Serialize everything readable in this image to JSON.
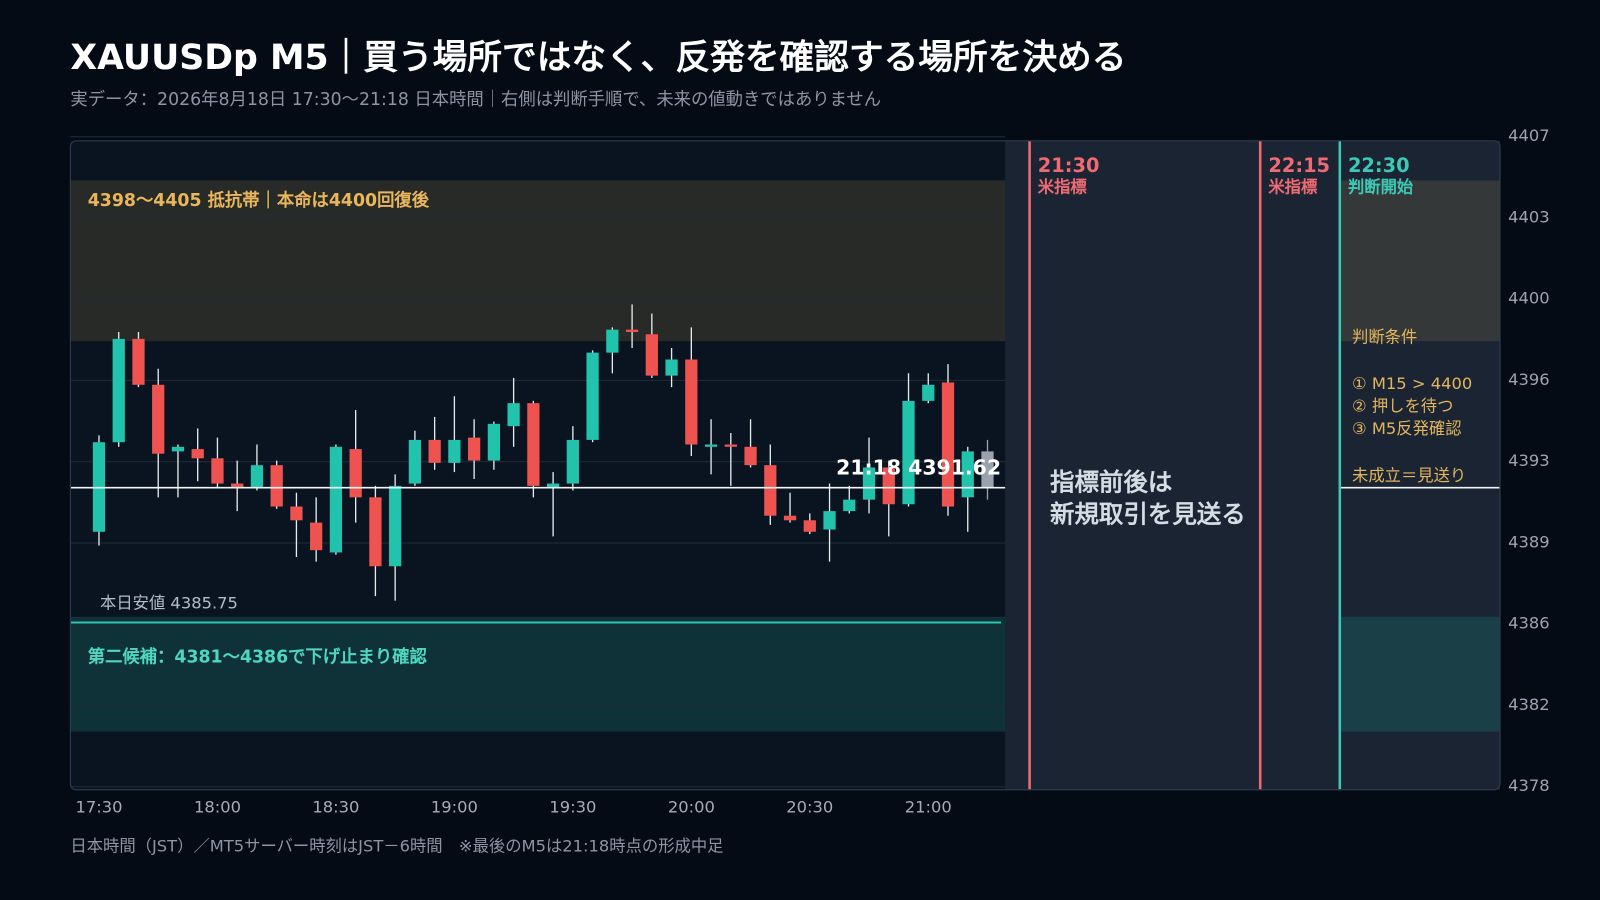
{
  "title": "XAUUSDp M5｜買う場所ではなく、反発を確認する場所を決める",
  "subtitle": "実データ：2026年8月18日 17:30〜21:18 日本時間｜右側は判断手順で、未来の値動きではありません",
  "footnote": "日本時間（JST）／MT5サーバー時刻はJST－6時間　※最後のM5は21:18時点の形成中足",
  "chart_data": {
    "type": "candlestick",
    "categories": [
      "17:30",
      null,
      null,
      null,
      null,
      null,
      "18:00",
      null,
      null,
      null,
      null,
      null,
      "18:30",
      null,
      null,
      null,
      null,
      null,
      "19:00",
      null,
      null,
      null,
      null,
      null,
      "19:30",
      null,
      null,
      null,
      null,
      null,
      "20:00",
      null,
      null,
      null,
      null,
      null,
      "20:30",
      null,
      null,
      null,
      null,
      null,
      "21:00",
      null,
      null,
      null
    ],
    "open": [
      4389.7,
      4393.6,
      4398.1,
      4396.1,
      4393.2,
      4393.3,
      4392.9,
      4391.8,
      4391.6,
      4392.6,
      4390.8,
      4390.1,
      4388.8,
      4393.3,
      4391.2,
      4388.2,
      4391.8,
      4393.7,
      4392.7,
      4393.8,
      4392.8,
      4394.3,
      4395.3,
      4391.6,
      4391.8,
      4393.7,
      4397.5,
      4398.5,
      4398.3,
      4396.5,
      4397.2,
      4393.4,
      4393.5,
      4393.4,
      4392.6,
      4390.4,
      4390.2,
      4389.8,
      4390.6,
      4391.1,
      4392.5,
      4390.9,
      4395.4,
      4396.2,
      4391.2,
      4393.2
    ],
    "high": [
      4393.9,
      4398.4,
      4398.4,
      4396.8,
      4393.5,
      4394.2,
      4393.8,
      4392.8,
      4393.5,
      4392.8,
      4391.4,
      4391.2,
      4393.5,
      4395.0,
      4391.7,
      4392.2,
      4394.1,
      4394.7,
      4395.6,
      4394.6,
      4394.5,
      4396.4,
      4395.4,
      4392.3,
      4394.3,
      4397.6,
      4398.6,
      4399.6,
      4399.2,
      4397.7,
      4398.6,
      4394.6,
      4394.0,
      4394.6,
      4393.5,
      4391.4,
      4390.5,
      4391.8,
      4391.7,
      4393.8,
      4392.8,
      4396.6,
      4396.6,
      4397.0,
      4393.4,
      4393.7
    ],
    "low": [
      4389.1,
      4393.4,
      4396.0,
      4391.2,
      4391.2,
      4391.9,
      4391.6,
      4390.6,
      4391.5,
      4390.7,
      4388.6,
      4388.4,
      4388.7,
      4390.1,
      4386.9,
      4386.7,
      4391.7,
      4392.4,
      4392.3,
      4392.0,
      4392.4,
      4393.4,
      4391.2,
      4389.5,
      4391.5,
      4393.6,
      4396.6,
      4397.7,
      4396.4,
      4396.0,
      4393.0,
      4392.2,
      4391.7,
      4392.5,
      4390.0,
      4390.1,
      4389.6,
      4388.4,
      4390.5,
      4390.5,
      4389.5,
      4390.8,
      4395.3,
      4390.4,
      4389.7,
      4391.1
    ],
    "close": [
      4393.6,
      4398.1,
      4396.1,
      4393.1,
      4393.4,
      4392.9,
      4391.8,
      4391.6,
      4392.6,
      4390.8,
      4390.2,
      4388.9,
      4393.4,
      4391.2,
      4388.2,
      4391.7,
      4393.7,
      4392.7,
      4393.7,
      4392.8,
      4394.4,
      4395.3,
      4391.7,
      4391.8,
      4393.7,
      4397.5,
      4398.5,
      4398.4,
      4396.5,
      4397.2,
      4393.5,
      4393.5,
      4393.4,
      4392.6,
      4390.4,
      4390.2,
      4389.7,
      4390.6,
      4391.1,
      4392.5,
      4390.9,
      4395.4,
      4396.1,
      4390.8,
      4393.2,
      4391.62
    ],
    "up_color": "#22c3ad",
    "down_color": "#ef5350",
    "forming_color": "#9aa3ad",
    "last_forming": true,
    "ylim": [
      4378.6,
      4406.9
    ],
    "yticks": [
      {
        "value": 4378.6,
        "label": "4378"
      },
      {
        "value": 4382.14,
        "label": "4382"
      },
      {
        "value": 4385.68,
        "label": "4386"
      },
      {
        "value": 4389.21,
        "label": "4389"
      },
      {
        "value": 4392.75,
        "label": "4393"
      },
      {
        "value": 4396.29,
        "label": "4396"
      },
      {
        "value": 4399.83,
        "label": "4400"
      },
      {
        "value": 4403.36,
        "label": "4403"
      },
      {
        "value": 4406.9,
        "label": "4407"
      }
    ],
    "grid": true,
    "bands": [
      {
        "from": 4398,
        "to": 4405,
        "label": "4398〜4405 抵抗帯｜本命は4400回復後",
        "color": "#c9a05a"
      },
      {
        "from": 4381,
        "to": 4386,
        "label": "第二候補：4381〜4386で下げ止まり確認",
        "color": "#1f9e8f"
      }
    ],
    "day_low": {
      "value": 4385.75,
      "label": "本日安値 4385.75",
      "color": "#2ec4b0"
    },
    "last_price": {
      "value": 4391.62,
      "label": "21:18  4391.62"
    },
    "events": [
      {
        "time": "21:30",
        "label": "米指標",
        "color": "#ef6b73"
      },
      {
        "time": "22:15",
        "label": "米指標",
        "color": "#ef6b73"
      },
      {
        "time": "22:30",
        "label": "判断開始",
        "color": "#3cc7b6"
      }
    ],
    "panel_note": [
      "指標前後は",
      "新規取引を見送る"
    ],
    "conditions": {
      "title": "判断条件",
      "items": [
        "① M15 > 4400",
        "② 押しを待つ",
        "③ M5反発確認"
      ],
      "fallback": "未成立＝見送り",
      "color": "#e2b55e"
    }
  }
}
